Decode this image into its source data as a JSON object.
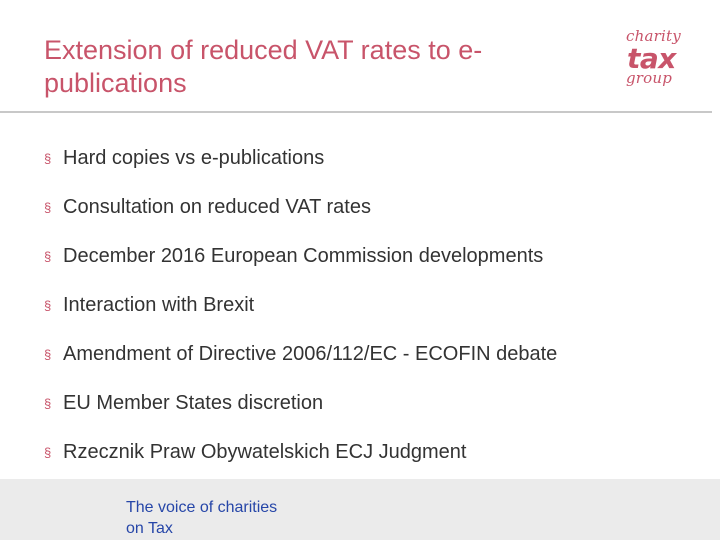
{
  "slide": {
    "title": "Extension of reduced VAT rates to e-publications"
  },
  "logo": {
    "line1": "charity",
    "line2": "tax",
    "line3": "group"
  },
  "bullet_marker": "§",
  "bullets": [
    "Hard copies vs e-publications",
    "Consultation on reduced VAT rates",
    "December 2016 European Commission developments",
    "Interaction with Brexit",
    "Amendment of Directive 2006/112/EC - ECOFIN debate",
    "EU Member States discretion",
    "Rzecznik Praw Obywatelskich ECJ Judgment"
  ],
  "footer": {
    "tagline_line1": "The voice of charities",
    "tagline_line2": "on Tax"
  },
  "colors": {
    "accent": "#c8546a",
    "body_text": "#333333",
    "footer_text": "#2646a8",
    "footer_background": "#ebebeb",
    "divider": "#c8c8c8"
  }
}
